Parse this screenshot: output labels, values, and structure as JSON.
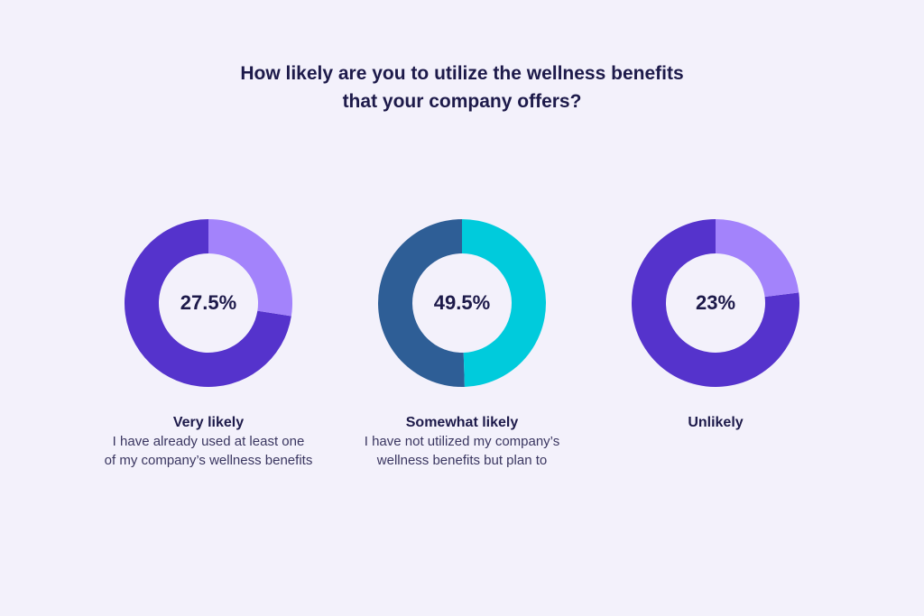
{
  "title_lines": [
    "How likely are you to utilize the wellness benefits",
    "that your company offers?"
  ],
  "chart_data": [
    {
      "type": "pie",
      "value": 27.5,
      "center_label": "27.5%",
      "label": "Very likely",
      "description_lines": [
        "I have already used at least one",
        "of my company’s wellness benefits"
      ],
      "colors": {
        "highlight": "#a383fb",
        "remainder": "#5533cc"
      }
    },
    {
      "type": "pie",
      "value": 49.5,
      "center_label": "49.5%",
      "label": "Somewhat likely",
      "description_lines": [
        "I have not utilized my company’s",
        "wellness benefits but plan to"
      ],
      "colors": {
        "highlight": "#00cbdc",
        "remainder": "#2e5e96"
      }
    },
    {
      "type": "pie",
      "value": 23,
      "center_label": "23%",
      "label": "Unlikely",
      "description_lines": [],
      "colors": {
        "highlight": "#a383fb",
        "remainder": "#5533cc"
      }
    }
  ]
}
